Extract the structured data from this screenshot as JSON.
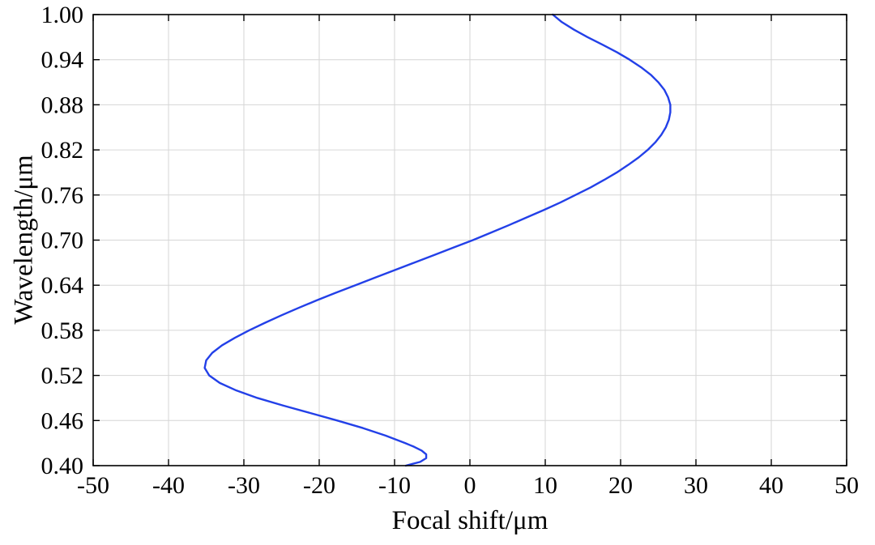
{
  "chart_data": {
    "type": "line",
    "title": "",
    "xlabel": "Focal shift/μm",
    "ylabel": "Wavelength/μm",
    "xlim": [
      -50,
      50
    ],
    "ylim": [
      0.4,
      1.0
    ],
    "x_tick_labels": [
      "-50",
      "-40",
      "-30",
      "-20",
      "-10",
      "0",
      "10",
      "20",
      "30",
      "40",
      "50"
    ],
    "y_tick_labels": [
      "0.40",
      "0.46",
      "0.52",
      "0.58",
      "0.64",
      "0.70",
      "0.76",
      "0.82",
      "0.88",
      "0.94",
      "1.00"
    ],
    "grid": true,
    "legend": "none",
    "line_color": "#2340e8",
    "grid_color": "#d6d6d6",
    "axis_color": "#000000",
    "background_color": "#ffffff",
    "series": [
      {
        "name": "focal-shift-vs-wavelength",
        "x_meaning": "focal_shift_um",
        "y_meaning": "wavelength_um",
        "points": [
          [
            -8.5,
            0.4
          ],
          [
            -6.6,
            0.405
          ],
          [
            -5.8,
            0.41
          ],
          [
            -5.8,
            0.415
          ],
          [
            -6.4,
            0.42
          ],
          [
            -7.4,
            0.425
          ],
          [
            -8.6,
            0.43
          ],
          [
            -11.2,
            0.44
          ],
          [
            -14.2,
            0.45
          ],
          [
            -17.6,
            0.46
          ],
          [
            -21.2,
            0.47
          ],
          [
            -24.8,
            0.48
          ],
          [
            -28.2,
            0.49
          ],
          [
            -31.0,
            0.5
          ],
          [
            -33.2,
            0.51
          ],
          [
            -34.6,
            0.52
          ],
          [
            -35.2,
            0.53
          ],
          [
            -35.0,
            0.54
          ],
          [
            -34.2,
            0.55
          ],
          [
            -32.9,
            0.56
          ],
          [
            -31.2,
            0.57
          ],
          [
            -29.3,
            0.58
          ],
          [
            -27.2,
            0.59
          ],
          [
            -25.0,
            0.6
          ],
          [
            -22.7,
            0.61
          ],
          [
            -20.3,
            0.62
          ],
          [
            -17.8,
            0.63
          ],
          [
            -15.2,
            0.64
          ],
          [
            -12.6,
            0.65
          ],
          [
            -10.0,
            0.66
          ],
          [
            -7.4,
            0.67
          ],
          [
            -4.8,
            0.68
          ],
          [
            -2.2,
            0.69
          ],
          [
            0.4,
            0.7
          ],
          [
            2.8,
            0.71
          ],
          [
            5.2,
            0.72
          ],
          [
            7.5,
            0.73
          ],
          [
            9.8,
            0.74
          ],
          [
            12.0,
            0.75
          ],
          [
            14.0,
            0.76
          ],
          [
            16.0,
            0.77
          ],
          [
            17.8,
            0.78
          ],
          [
            19.5,
            0.79
          ],
          [
            21.0,
            0.8
          ],
          [
            22.4,
            0.81
          ],
          [
            23.6,
            0.82
          ],
          [
            24.6,
            0.83
          ],
          [
            25.4,
            0.84
          ],
          [
            26.0,
            0.85
          ],
          [
            26.4,
            0.86
          ],
          [
            26.6,
            0.87
          ],
          [
            26.6,
            0.88
          ],
          [
            26.3,
            0.89
          ],
          [
            25.8,
            0.9
          ],
          [
            25.0,
            0.91
          ],
          [
            24.0,
            0.92
          ],
          [
            22.7,
            0.93
          ],
          [
            21.2,
            0.94
          ],
          [
            19.5,
            0.95
          ],
          [
            17.6,
            0.96
          ],
          [
            15.6,
            0.97
          ],
          [
            13.8,
            0.98
          ],
          [
            12.2,
            0.99
          ],
          [
            11.0,
            1.0
          ]
        ]
      }
    ]
  }
}
